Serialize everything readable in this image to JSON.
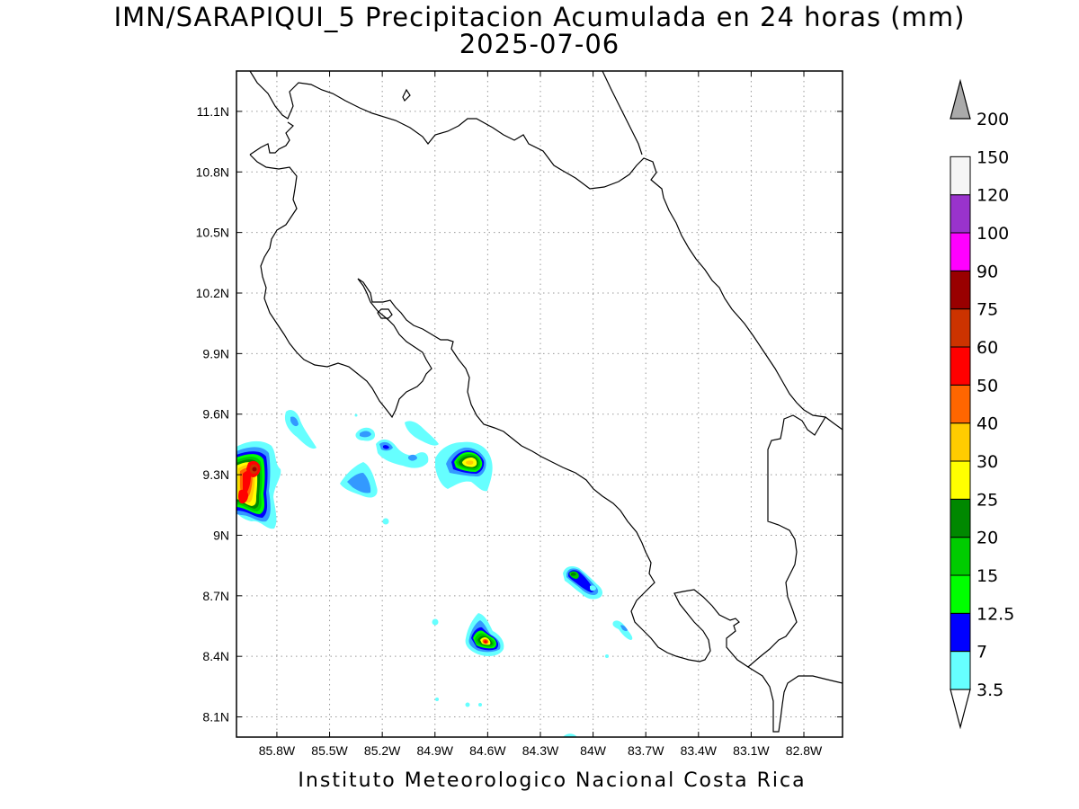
{
  "title": {
    "line1": "IMN/SARAPIQUI_5 Precipitacion Acumulada en 24 horas (mm)",
    "line2": "2025-07-06"
  },
  "footer": "Instituto Meteorologico Nacional Costa Rica",
  "map": {
    "lon_range": [
      -86.03,
      -82.58
    ],
    "lat_range": [
      8.0,
      11.3
    ],
    "grid": "dotted",
    "lon_ticks": [
      {
        "value": -85.8,
        "label": "85.8W"
      },
      {
        "value": -85.5,
        "label": "85.5W"
      },
      {
        "value": -85.2,
        "label": "85.2W"
      },
      {
        "value": -84.9,
        "label": "84.9W"
      },
      {
        "value": -84.6,
        "label": "84.6W"
      },
      {
        "value": -84.3,
        "label": "84.3W"
      },
      {
        "value": -84.0,
        "label": "84W"
      },
      {
        "value": -83.7,
        "label": "83.7W"
      },
      {
        "value": -83.4,
        "label": "83.4W"
      },
      {
        "value": -83.1,
        "label": "83.1W"
      },
      {
        "value": -82.8,
        "label": "82.8W"
      }
    ],
    "lat_ticks": [
      {
        "value": 11.1,
        "label": "11.1N"
      },
      {
        "value": 10.8,
        "label": "10.8N"
      },
      {
        "value": 10.5,
        "label": "10.5N"
      },
      {
        "value": 10.2,
        "label": "10.2N"
      },
      {
        "value": 9.9,
        "label": "9.9N"
      },
      {
        "value": 9.6,
        "label": "9.6N"
      },
      {
        "value": 9.3,
        "label": "9.3N"
      },
      {
        "value": 9.0,
        "label": "9N"
      },
      {
        "value": 8.7,
        "label": "8.7N"
      },
      {
        "value": 8.4,
        "label": "8.4N"
      },
      {
        "value": 8.1,
        "label": "8.1N"
      }
    ]
  },
  "colorbar": {
    "levels": [
      {
        "label": "3.5",
        "color": "#66ffff"
      },
      {
        "label": "7",
        "color": "#3399ff"
      },
      {
        "label": "12.5",
        "color": "#0000ff"
      },
      {
        "label": "15",
        "color": "#00ff00"
      },
      {
        "label": "20",
        "color": "#00cc00"
      },
      {
        "label": "25",
        "color": "#008800"
      },
      {
        "label": "30",
        "color": "#ffff00"
      },
      {
        "label": "40",
        "color": "#ffcc00"
      },
      {
        "label": "50",
        "color": "#ff6600"
      },
      {
        "label": "60",
        "color": "#ff0000"
      },
      {
        "label": "75",
        "color": "#cc3300"
      },
      {
        "label": "90",
        "color": "#990000"
      },
      {
        "label": "100",
        "color": "#ff00ff"
      },
      {
        "label": "120",
        "color": "#9933cc"
      },
      {
        "label": "150",
        "color": "#f5f5f5"
      },
      {
        "label": "200",
        "color": "#aaaaaa"
      }
    ]
  }
}
